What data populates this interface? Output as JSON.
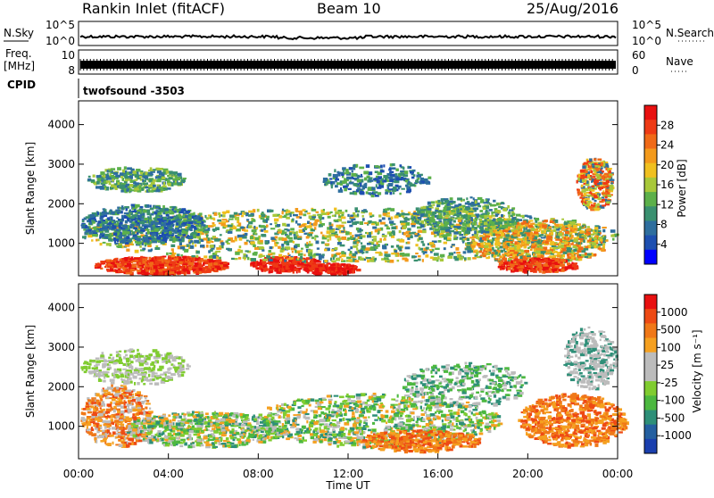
{
  "header": {
    "station": "Rankin Inlet (fitACF)",
    "beam": "Beam 10",
    "date": "25/Aug/2016"
  },
  "panels": {
    "nsky": {
      "label": "N.Sky",
      "right_label": "N.Search",
      "ticks": [
        "10^5",
        "10^0"
      ],
      "right_ticks": [
        "10^5",
        "10^0"
      ]
    },
    "freq": {
      "label_line1": "Freq.",
      "label_line2": "[MHz]",
      "right_label": "Nave",
      "ticks": [
        "10",
        "8"
      ],
      "right_ticks": [
        "60",
        "0"
      ]
    },
    "cpid": {
      "label": "CPID",
      "value": "twofsound -3503"
    }
  },
  "chart_data": [
    {
      "type": "heatmap",
      "name": "power",
      "xlabel": "",
      "ylabel": "Slant Range [km]",
      "xlim": [
        0,
        24
      ],
      "ylim": [
        180,
        4600
      ],
      "yticks": [
        1000,
        2000,
        3000,
        4000
      ],
      "colorbar": {
        "label": "Power [dB]",
        "ticks": [
          4,
          8,
          12,
          16,
          20,
          24,
          28
        ],
        "range": [
          0,
          32
        ],
        "colors": [
          "#0000ff",
          "#1d4fb0",
          "#2e6e9e",
          "#3a9070",
          "#5cb04a",
          "#a8c83a",
          "#f0c020",
          "#f39a1c",
          "#f06a18",
          "#ee3a15",
          "#e81010"
        ]
      }
    },
    {
      "type": "heatmap",
      "name": "velocity",
      "xlabel": "Time UT",
      "ylabel": "Slant Range [km]",
      "xlim": [
        0,
        24
      ],
      "ylim": [
        180,
        4600
      ],
      "yticks": [
        1000,
        2000,
        3000,
        4000
      ],
      "xticks": [
        "00:00",
        "04:00",
        "08:00",
        "12:00",
        "16:00",
        "20:00",
        "00:00"
      ],
      "colorbar": {
        "label": "Velocity [m s⁻¹]",
        "ticks": [
          "1000",
          "500",
          "100",
          "25",
          "-25",
          "-100",
          "-500",
          "-1000"
        ],
        "colors": [
          "#1a3fae",
          "#245fa0",
          "#2e8f78",
          "#4cb840",
          "#80cc30",
          "#bcbcbc",
          "#bcbcbc",
          "#f5a020",
          "#f07818",
          "#ee4a14",
          "#e81010"
        ]
      }
    }
  ]
}
